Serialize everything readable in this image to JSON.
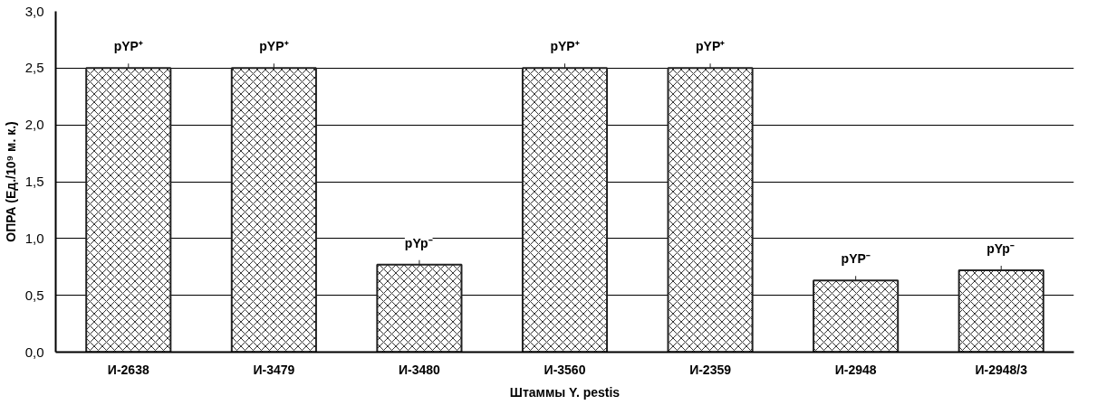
{
  "chart_data": {
    "type": "bar",
    "xlabel": "Штаммы Y. pestis",
    "ylabel": "ОПРА (Ед./10⁹ м. к.)",
    "categories": [
      "И-2638",
      "И-3479",
      "И-3480",
      "И-3560",
      "И-2359",
      "И-2948",
      "И-2948/3"
    ],
    "values": [
      2.5,
      2.5,
      0.77,
      2.5,
      2.5,
      0.63,
      0.72
    ],
    "color": "#ffffff",
    "ylim": [
      0,
      3
    ],
    "yticks": [
      {
        "value": 0,
        "label": "0,0"
      },
      {
        "value": 0.5,
        "label": "0,5"
      },
      {
        "value": 1,
        "label": "1,0"
      },
      {
        "value": 1.5,
        "label": "1,5"
      },
      {
        "value": 2,
        "label": "2,0"
      },
      {
        "value": 2.5,
        "label": "2,5"
      },
      {
        "value": 3,
        "label": "3,0"
      }
    ],
    "grid": "y",
    "annotations": [
      {
        "text": "pYP⁺",
        "x": "И-2638",
        "y": 2.5
      },
      {
        "text": "pYP⁺",
        "x": "И-3479",
        "y": 2.5
      },
      {
        "text": "pYp⁻",
        "x": "И-3480",
        "y": 0.77
      },
      {
        "text": "pYP⁺",
        "x": "И-3560",
        "y": 2.5
      },
      {
        "text": "pYP⁺",
        "x": "И-2359",
        "y": 2.5
      },
      {
        "text": "pYP⁻",
        "x": "И-2948",
        "y": 0.63
      },
      {
        "text": "pYp⁻",
        "x": "И-2948/3",
        "y": 0.72
      }
    ]
  }
}
